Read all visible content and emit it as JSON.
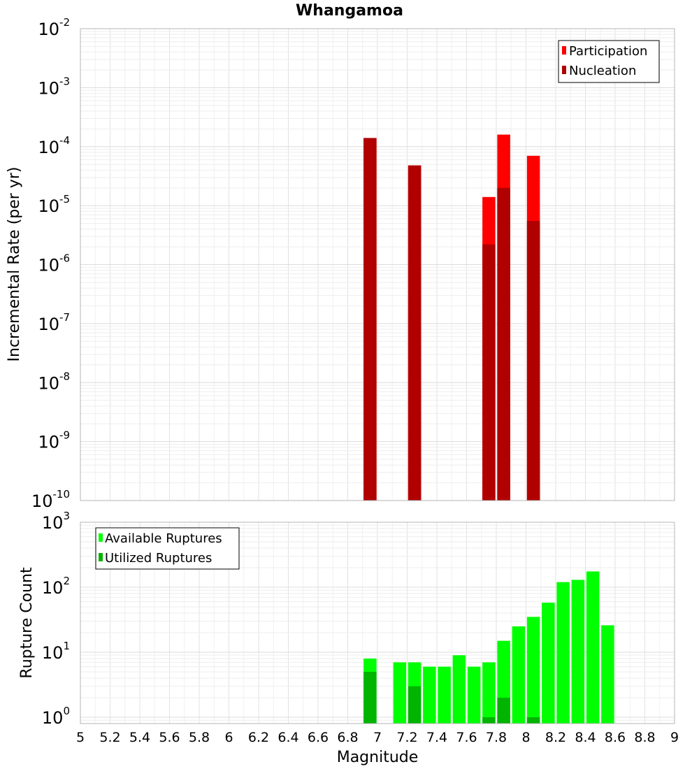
{
  "chart_data": {
    "title": "Whangamoa",
    "xlabel": "Magnitude",
    "xlim": [
      5,
      9
    ],
    "x_ticks": [
      "5",
      "5.2",
      "5.4",
      "5.6",
      "5.8",
      "6",
      "6.2",
      "6.4",
      "6.6",
      "6.8",
      "7",
      "7.2",
      "7.4",
      "7.6",
      "7.8",
      "8",
      "8.2",
      "8.4",
      "8.6",
      "8.8",
      "9"
    ],
    "panels": [
      {
        "type": "bar",
        "ylabel": "Incremental Rate (per yr)",
        "yscale": "log",
        "ylim": [
          1e-10,
          0.01
        ],
        "y_ticks": [
          {
            "base": "10",
            "exp": "-10"
          },
          {
            "base": "10",
            "exp": "-9"
          },
          {
            "base": "10",
            "exp": "-8"
          },
          {
            "base": "10",
            "exp": "-7"
          },
          {
            "base": "10",
            "exp": "-6"
          },
          {
            "base": "10",
            "exp": "-5"
          },
          {
            "base": "10",
            "exp": "-4"
          },
          {
            "base": "10",
            "exp": "-3"
          },
          {
            "base": "10",
            "exp": "-2"
          }
        ],
        "legend_position": "top-right",
        "series": [
          {
            "name": "Participation",
            "color": "#ff0000",
            "x": [
              6.95,
              7.25,
              7.75,
              7.85,
              8.05
            ],
            "values": [
              0.00014,
              4.8e-05,
              1.4e-05,
              0.00016,
              7e-05
            ]
          },
          {
            "name": "Nucleation",
            "color": "#b00000",
            "x": [
              6.95,
              7.25,
              7.75,
              7.85,
              8.05
            ],
            "values": [
              0.00014,
              4.8e-05,
              2.2e-06,
              2e-05,
              5.5e-06
            ]
          }
        ]
      },
      {
        "type": "bar",
        "ylabel": "Rupture Count",
        "yscale": "log",
        "ylim": [
          0.8,
          1000
        ],
        "y_ticks": [
          {
            "base": "10",
            "exp": "0"
          },
          {
            "base": "10",
            "exp": "1"
          },
          {
            "base": "10",
            "exp": "2"
          },
          {
            "base": "10",
            "exp": "3"
          }
        ],
        "legend_position": "top-left",
        "series": [
          {
            "name": "Available Ruptures",
            "color": "#00ff00",
            "x": [
              6.95,
              7.15,
              7.25,
              7.35,
              7.45,
              7.55,
              7.65,
              7.75,
              7.85,
              7.95,
              8.05,
              8.15,
              8.25,
              8.35,
              8.45,
              8.55
            ],
            "values": [
              8,
              7,
              7,
              6,
              6,
              9,
              6,
              7,
              15,
              25,
              35,
              58,
              120,
              130,
              175,
              26
            ]
          },
          {
            "name": "Utilized Ruptures",
            "color": "#00b400",
            "x": [
              6.95,
              7.25,
              7.75,
              7.85,
              8.05
            ],
            "values": [
              5,
              3,
              1,
              2,
              1
            ]
          }
        ]
      }
    ]
  }
}
